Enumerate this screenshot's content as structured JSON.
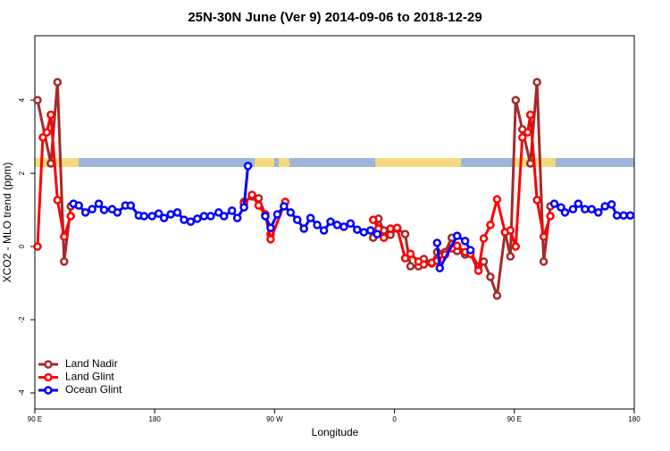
{
  "chart_data": {
    "type": "line",
    "title": "25N-30N June (Ver 9)   2014-09-06 to 2018-12-29",
    "x_label": "Longitude",
    "y_label": "XCO2 - MLO trend (ppm)",
    "xlim": [
      90,
      540
    ],
    "ylim": [
      -4.44,
      5.76
    ],
    "xticks": [
      {
        "value": 90,
        "label": "90 E"
      },
      180,
      {
        "value": 270,
        "label": "90 W"
      },
      {
        "value": 360,
        "label": "0"
      },
      {
        "value": 450,
        "label": "90 E"
      },
      {
        "value": 540,
        "label": "180"
      }
    ],
    "yticks": [
      -4,
      -2,
      0,
      2,
      4
    ],
    "legend": "bottomleft",
    "series": [
      {
        "name": "Land Nadir",
        "color": "#a52a2a",
        "x": [
          92,
          102,
          107,
          112,
          117,
          180,
          247,
          253,
          258,
          263,
          267,
          300,
          344,
          348,
          352,
          357,
          362,
          368,
          372,
          378,
          382,
          388,
          392,
          398,
          403,
          407,
          413,
          417,
          423,
          427,
          432,
          437,
          443,
          447,
          451,
          456,
          462,
          467,
          472,
          477
        ],
        "values": [
          4.0,
          2.27,
          4.49,
          -0.41,
          1.1,
          null,
          1.22,
          1.37,
          1.32,
          0.88,
          0.34,
          null,
          0.24,
          0.76,
          0.44,
          0.32,
          0.49,
          0.34,
          -0.54,
          -0.54,
          -0.34,
          -0.46,
          -0.15,
          -0.15,
          0.24,
          -0.12,
          -0.22,
          -0.15,
          -0.54,
          -0.41,
          -0.83,
          -1.34,
          0.39,
          -0.27,
          4.0,
          3.2,
          2.27,
          4.49,
          -0.41,
          1.1
        ]
      },
      {
        "name": "Land Glint",
        "color": "#ff0000",
        "x": [
          92,
          96,
          99,
          102,
          107,
          112,
          117,
          180,
          247,
          253,
          258,
          263,
          267,
          278,
          300,
          344,
          348,
          352,
          357,
          362,
          368,
          372,
          378,
          382,
          388,
          392,
          398,
          403,
          407,
          413,
          417,
          423,
          427,
          432,
          437,
          443,
          447,
          451,
          456,
          460,
          462,
          467,
          472,
          477
        ],
        "values": [
          0,
          2.98,
          3.12,
          3.6,
          1.27,
          0.27,
          0.83,
          null,
          1.17,
          1.41,
          1.12,
          0.88,
          0.2,
          1.22,
          null,
          0.73,
          0.49,
          0.24,
          0.49,
          0.51,
          -0.32,
          -0.2,
          -0.41,
          -0.49,
          -0.44,
          -0.39,
          -0.22,
          -0.05,
          0.02,
          -0.15,
          -0.2,
          -0.66,
          0.22,
          0.59,
          1.29,
          0.39,
          0.44,
          0,
          2.98,
          3.12,
          3.6,
          1.27,
          0.27,
          0.83
        ]
      },
      {
        "name": "Ocean Glint",
        "color": "#0000ff",
        "x": [
          119,
          123,
          128,
          133,
          138,
          142,
          148,
          152,
          158,
          162,
          168,
          172,
          178,
          183,
          187,
          192,
          197,
          202,
          207,
          212,
          217,
          222,
          228,
          232,
          238,
          242,
          247,
          250,
          255,
          263,
          267,
          272,
          277,
          282,
          287,
          292,
          297,
          302,
          307,
          312,
          317,
          322,
          327,
          332,
          337,
          342,
          347,
          370,
          392,
          394,
          407,
          413,
          417,
          450,
          480,
          485,
          488,
          494,
          498,
          503,
          508,
          513,
          518,
          523,
          527,
          532,
          537
        ],
        "values": [
          1.17,
          1.12,
          0.93,
          1.02,
          1.17,
          1.0,
          1.02,
          0.93,
          1.12,
          1.12,
          0.85,
          0.83,
          0.83,
          0.9,
          0.78,
          0.88,
          0.93,
          0.73,
          0.68,
          0.76,
          0.83,
          0.83,
          0.93,
          0.83,
          0.98,
          0.78,
          1.07,
          2.2,
          null,
          0.83,
          0.51,
          0.88,
          1.1,
          0.93,
          0.73,
          0.49,
          0.78,
          0.59,
          0.44,
          0.68,
          0.59,
          0.54,
          0.63,
          0.46,
          0.39,
          0.44,
          0.34,
          null,
          0.1,
          -0.59,
          0.29,
          0.15,
          -0.1,
          null,
          1.17,
          1.07,
          0.93,
          1.02,
          1.17,
          1.02,
          1.02,
          0.93,
          1.1,
          1.15,
          0.85,
          0.85,
          0.85
        ]
      }
    ]
  }
}
